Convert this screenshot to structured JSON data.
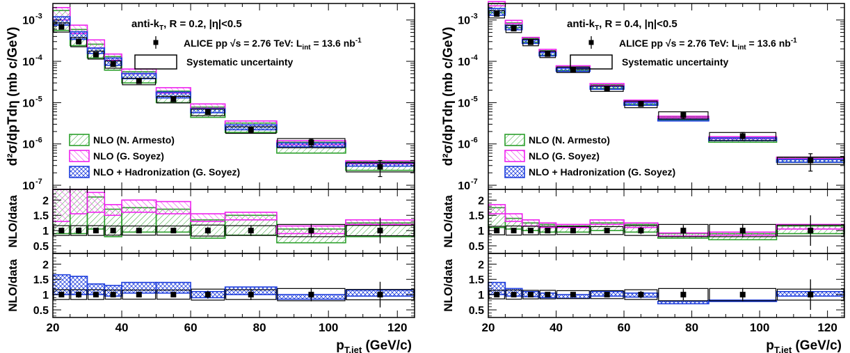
{
  "colors": {
    "armesto": "#2ca02c",
    "soyez": "#ee22ee",
    "hadronization": "#1f3fdd",
    "data": "#000000",
    "systematic": "#000000"
  },
  "legend_top": {
    "ALICE pp": "ALICE pp",
    "sqrt_s": "√s = 2.76 TeV: L",
    "lumi_sub": "int",
    "lumi_val": " = 13.6 nb",
    "lumi_sup": "-1",
    "systematic": "Systematic uncertainty"
  },
  "legend_models": [
    {
      "key": "armesto",
      "label": "NLO (N. Armesto)"
    },
    {
      "key": "soyez",
      "label": "NLO (G. Soyez)"
    },
    {
      "key": "hadronization",
      "label": "NLO + Hadronization (G. Soyez)"
    }
  ],
  "chart_data": [
    {
      "type": "bar",
      "title": "anti-kT, R = 0.2, |η|<0.5",
      "title_parts": {
        "a": "anti-k",
        "b": "T",
        "c": ", R = 0.2, |η|<0.5"
      },
      "xlabel": "pT,jet (GeV/c)",
      "xlabel_parts": {
        "p": "p",
        "sub": "T,jet",
        "unit": " (GeV/c)"
      },
      "ylabel_main": "d²σ/dpTdη (mb c/GeV)",
      "ylabel_ratio": "NLO/data",
      "xlim": [
        20,
        125
      ],
      "x_ticks": [
        "20",
        "40",
        "60",
        "80",
        "100",
        "120"
      ],
      "y_ticks_main": [
        "10",
        "10",
        "10",
        "10",
        "10"
      ],
      "y_ticks_main_exp": [
        "-3",
        "-4",
        "-5",
        "-6",
        "-7"
      ],
      "y_ticks_ratio": [
        "2",
        "1.5",
        "1",
        "0.5"
      ],
      "ylim_main_log10": [
        -7.1,
        -2.6
      ],
      "ylim_ratio": [
        0.25,
        2.35
      ],
      "bins": [
        [
          20,
          25
        ],
        [
          25,
          30
        ],
        [
          30,
          35
        ],
        [
          35,
          40
        ],
        [
          40,
          50
        ],
        [
          50,
          60
        ],
        [
          60,
          70
        ],
        [
          70,
          85
        ],
        [
          85,
          105
        ],
        [
          105,
          125
        ]
      ],
      "data": {
        "x": [
          22.5,
          27.5,
          32.5,
          37.5,
          45,
          55,
          65,
          77.5,
          95,
          115
        ],
        "y": [
          0.00068,
          0.0003,
          0.000145,
          8.5e-05,
          3.3e-05,
          1.2e-05,
          5.9e-06,
          2.2e-06,
          1.08e-06,
          2.8e-07
        ],
        "stat_err_rel": [
          0.05,
          0.05,
          0.06,
          0.08,
          0.07,
          0.08,
          0.12,
          0.15,
          0.2,
          0.42
        ],
        "syst_rel": [
          0.25,
          0.25,
          0.22,
          0.2,
          0.18,
          0.18,
          0.18,
          0.18,
          0.25,
          0.25
        ]
      },
      "series": [
        {
          "name": "NLO (N. Armesto)",
          "key": "armesto",
          "lo": [
            0.00056,
            0.00024,
            0.00012,
            6.1e-05,
            3e-05,
            1e-05,
            4.4e-06,
            1.9e-06,
            6e-07,
            2.3e-07
          ],
          "hi": [
            0.0017,
            0.00059,
            0.00026,
            0.00013,
            5.6e-05,
            1.9e-05,
            7.8e-06,
            3.2e-06,
            1.1e-06,
            3.7e-07
          ]
        },
        {
          "name": "NLO (G. Soyez)",
          "key": "soyez",
          "lo": [
            0.001,
            0.00047,
            0.00021,
            0.000105,
            5e-05,
            1.7e-05,
            7.3e-06,
            2.9e-06,
            9.5e-07,
            3.3e-07
          ],
          "hi": [
            0.002,
            0.00075,
            0.00033,
            0.00015,
            6.5e-05,
            2.3e-05,
            9.3e-06,
            3.6e-06,
            1.2e-06,
            3.9e-07
          ]
        },
        {
          "name": "NLO + Hadronization (G. Soyez)",
          "key": "hadronization",
          "lo": [
            0.00075,
            0.00034,
            0.000155,
            8e-05,
            3.8e-05,
            1.3e-05,
            5.7e-06,
            2.2e-06,
            8.5e-07,
            2.9e-07
          ],
          "hi": [
            0.0012,
            0.00052,
            0.00021,
            0.00012,
            5.1e-05,
            1.8e-05,
            7.1e-06,
            2.9e-06,
            1.05e-06,
            3.5e-07
          ]
        }
      ],
      "ratio_panel_1": {
        "data": [
          1.0,
          1.0,
          1.0,
          1.0,
          1.0,
          1.0,
          1.0,
          1.0,
          1.0,
          1.0
        ],
        "stat_err": [
          0.07,
          0.1,
          0.07,
          0.09,
          0.07,
          0.08,
          0.13,
          0.18,
          0.22,
          0.42
        ],
        "syst": [
          0.16,
          0.16,
          0.16,
          0.15,
          0.15,
          0.15,
          0.18,
          0.16,
          0.2,
          0.17
        ],
        "armesto_lo": [
          0.9,
          0.9,
          1.05,
          0.8,
          0.95,
          0.95,
          0.75,
          0.85,
          0.6,
          0.8
        ],
        "armesto_hi": [
          2.4,
          2.4,
          2.1,
          1.7,
          1.75,
          1.7,
          1.35,
          1.5,
          1.05,
          1.25
        ],
        "soyez_lo": [
          1.3,
          1.55,
          1.6,
          1.5,
          1.6,
          1.55,
          1.3,
          1.35,
          0.9,
          1.2
        ],
        "soyez_hi": [
          2.45,
          2.45,
          2.25,
          1.85,
          2.0,
          1.95,
          1.55,
          1.6,
          1.15,
          1.35
        ]
      },
      "ratio_panel_2": {
        "data": [
          1.0,
          1.0,
          1.0,
          1.0,
          1.0,
          1.0,
          1.0,
          1.0,
          1.0,
          1.0
        ],
        "stat_err": [
          0.07,
          0.1,
          0.07,
          0.09,
          0.07,
          0.08,
          0.13,
          0.18,
          0.22,
          0.42
        ],
        "syst": [
          0.16,
          0.16,
          0.16,
          0.15,
          0.15,
          0.15,
          0.18,
          0.16,
          0.2,
          0.17
        ],
        "had_lo": [
          1.0,
          1.0,
          1.0,
          0.95,
          1.05,
          1.05,
          0.9,
          1.0,
          0.85,
          0.95
        ],
        "had_hi": [
          1.65,
          1.6,
          1.35,
          1.3,
          1.4,
          1.4,
          1.1,
          1.25,
          1.0,
          1.15
        ]
      }
    },
    {
      "type": "bar",
      "title": "anti-kT, R = 0.4, |η|<0.5",
      "title_parts": {
        "a": "anti-k",
        "b": "T",
        "c": ", R = 0.4, |η|<0.5"
      },
      "xlabel": "pT,jet (GeV/c)",
      "xlabel_parts": {
        "p": "p",
        "sub": "T,jet",
        "unit": " (GeV/c)"
      },
      "ylabel_main": "d²σ/dpTdη (mb c/GeV)",
      "ylabel_ratio": "NLO/data",
      "xlim": [
        20,
        125
      ],
      "x_ticks": [
        "20",
        "40",
        "60",
        "80",
        "100",
        "120"
      ],
      "y_ticks_main": [
        "10",
        "10",
        "10",
        "10",
        "10"
      ],
      "y_ticks_main_exp": [
        "-3",
        "-4",
        "-5",
        "-6",
        "-7"
      ],
      "y_ticks_ratio": [
        "2",
        "1.5",
        "1",
        "0.5"
      ],
      "ylim_main_log10": [
        -7.1,
        -2.6
      ],
      "ylim_ratio": [
        0.25,
        2.35
      ],
      "bins": [
        [
          20,
          25
        ],
        [
          25,
          30
        ],
        [
          30,
          35
        ],
        [
          35,
          40
        ],
        [
          40,
          50
        ],
        [
          50,
          60
        ],
        [
          60,
          70
        ],
        [
          70,
          85
        ],
        [
          85,
          105
        ],
        [
          105,
          125
        ]
      ],
      "data": {
        "x": [
          22.5,
          27.5,
          32.5,
          37.5,
          45,
          55,
          65,
          77.5,
          95,
          115
        ],
        "y": [
          0.0014,
          0.00062,
          0.00029,
          0.00015,
          6.3e-05,
          2.2e-05,
          9.2e-06,
          5e-06,
          1.55e-06,
          4e-07
        ],
        "stat_err_rel": [
          0.05,
          0.05,
          0.05,
          0.06,
          0.06,
          0.08,
          0.12,
          0.18,
          0.22,
          0.45
        ],
        "syst_rel": [
          0.2,
          0.2,
          0.18,
          0.18,
          0.15,
          0.15,
          0.18,
          0.2,
          0.22,
          0.2
        ]
      },
      "series": [
        {
          "name": "NLO (N. Armesto)",
          "key": "armesto",
          "lo": [
            0.0015,
            0.00065,
            0.00029,
            0.00014,
            6e-05,
            2.2e-05,
            9e-06,
            3.8e-06,
            1.1e-06,
            3.6e-07
          ],
          "hi": [
            0.0025,
            0.00085,
            0.00036,
            0.00018,
            7.3e-05,
            2.7e-05,
            1.1e-05,
            4.5e-06,
            1.4e-06,
            4.6e-07
          ]
        },
        {
          "name": "NLO (G. Soyez)",
          "key": "soyez",
          "lo": [
            0.0022,
            0.00082,
            0.00033,
            0.00017,
            7e-05,
            2.6e-05,
            1.05e-05,
            4.3e-06,
            1.35e-06,
            4.4e-07
          ],
          "hi": [
            0.0028,
            0.00098,
            0.00038,
            0.000195,
            7.8e-05,
            2.9e-05,
            1.15e-05,
            4.7e-06,
            1.5e-06,
            4.8e-07
          ]
        },
        {
          "name": "NLO + Hadronization (G. Soyez)",
          "key": "hadronization",
          "lo": [
            0.0013,
            0.00058,
            0.00027,
            0.000135,
            5.7e-05,
            2.1e-05,
            8.6e-06,
            3.6e-06,
            1.2e-06,
            3.6e-07
          ],
          "hi": [
            0.0019,
            0.00075,
            0.00033,
            0.000165,
            6.8e-05,
            2.5e-05,
            1e-05,
            4e-06,
            1.4e-06,
            4.2e-07
          ]
        }
      ],
      "ratio_panel_1": {
        "data": [
          1.0,
          1.0,
          1.0,
          1.0,
          1.0,
          1.0,
          1.0,
          1.0,
          1.0,
          1.0
        ],
        "stat_err": [
          0.07,
          0.08,
          0.06,
          0.07,
          0.06,
          0.08,
          0.12,
          0.18,
          0.22,
          0.5
        ],
        "syst": [
          0.14,
          0.15,
          0.14,
          0.14,
          0.13,
          0.13,
          0.16,
          0.2,
          0.2,
          0.18
        ],
        "armesto_lo": [
          1.1,
          1.05,
          1.0,
          0.95,
          0.95,
          1.0,
          0.95,
          0.75,
          0.7,
          0.9
        ],
        "armesto_hi": [
          1.75,
          1.4,
          1.25,
          1.2,
          1.15,
          1.25,
          1.2,
          0.9,
          0.9,
          1.15
        ],
        "soyez_lo": [
          1.55,
          1.3,
          1.15,
          1.1,
          1.1,
          1.2,
          1.1,
          0.82,
          0.85,
          1.05
        ],
        "soyez_hi": [
          1.85,
          1.55,
          1.35,
          1.25,
          1.2,
          1.35,
          1.25,
          0.92,
          0.95,
          1.2
        ]
      },
      "ratio_panel_2": {
        "data": [
          1.0,
          1.0,
          1.0,
          1.0,
          1.0,
          1.0,
          1.0,
          1.0,
          1.0,
          1.0
        ],
        "stat_err": [
          0.07,
          0.08,
          0.06,
          0.07,
          0.06,
          0.08,
          0.12,
          0.18,
          0.22,
          0.5
        ],
        "syst": [
          0.14,
          0.15,
          0.14,
          0.14,
          0.13,
          0.13,
          0.16,
          0.2,
          0.2,
          0.18
        ],
        "had_lo": [
          1.0,
          0.95,
          0.93,
          0.9,
          0.88,
          0.95,
          0.92,
          0.7,
          0.8,
          0.95
        ],
        "had_hi": [
          1.4,
          1.2,
          1.1,
          1.05,
          1.0,
          1.1,
          1.05,
          0.78,
          0.82,
          1.1
        ]
      }
    }
  ]
}
